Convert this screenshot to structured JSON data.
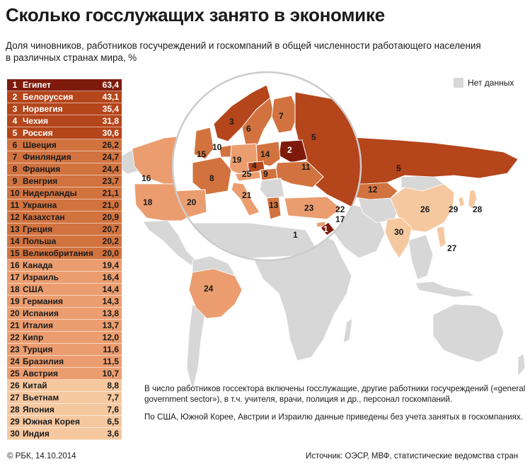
{
  "header": {
    "title": "Сколько госслужащих занято в экономике",
    "subtitle": "Доля чиновников, работников госучреждений и госкомпаний в общей численности работающего населения в различных странах мира, %"
  },
  "legend": {
    "no_data_label": "Нет данных",
    "no_data_color": "#d7d7d7"
  },
  "colors": {
    "tier1": "#7e1a0c",
    "tier2": "#b5451b",
    "tier3": "#d2733f",
    "tier4": "#eb9d6f",
    "tier5": "#f6c8a0",
    "nodata": "#d7d7d7"
  },
  "chart_data": {
    "type": "table",
    "columns": [
      "rank",
      "country",
      "value"
    ],
    "rows": [
      {
        "rank": "1",
        "country": "Египет",
        "value": "63,4",
        "tier": "tier1"
      },
      {
        "rank": "2",
        "country": "Белоруссия",
        "value": "43,1",
        "tier": "tier2"
      },
      {
        "rank": "3",
        "country": "Норвегия",
        "value": "35,4",
        "tier": "tier2"
      },
      {
        "rank": "4",
        "country": "Чехия",
        "value": "31,8",
        "tier": "tier2"
      },
      {
        "rank": "5",
        "country": "Россия",
        "value": "30,6",
        "tier": "tier2"
      },
      {
        "rank": "6",
        "country": "Швеция",
        "value": "26,2",
        "tier": "tier3"
      },
      {
        "rank": "7",
        "country": "Финляндия",
        "value": "24,7",
        "tier": "tier3"
      },
      {
        "rank": "8",
        "country": "Франция",
        "value": "24,4",
        "tier": "tier3"
      },
      {
        "rank": "9",
        "country": "Венгрия",
        "value": "23,7",
        "tier": "tier3"
      },
      {
        "rank": "10",
        "country": "Нидерланды",
        "value": "21,1",
        "tier": "tier3"
      },
      {
        "rank": "11",
        "country": "Украина",
        "value": "21,0",
        "tier": "tier3"
      },
      {
        "rank": "12",
        "country": "Казахстан",
        "value": "20,9",
        "tier": "tier3"
      },
      {
        "rank": "13",
        "country": "Греция",
        "value": "20,7",
        "tier": "tier3"
      },
      {
        "rank": "14",
        "country": "Польша",
        "value": "20,2",
        "tier": "tier3"
      },
      {
        "rank": "15",
        "country": "Великобритания",
        "value": "20,0",
        "tier": "tier3"
      },
      {
        "rank": "16",
        "country": "Канада",
        "value": "19,4",
        "tier": "tier4"
      },
      {
        "rank": "17",
        "country": "Израиль",
        "value": "16,4",
        "tier": "tier4"
      },
      {
        "rank": "18",
        "country": "США",
        "value": "14,4",
        "tier": "tier4"
      },
      {
        "rank": "19",
        "country": "Германия",
        "value": "14,3",
        "tier": "tier4"
      },
      {
        "rank": "20",
        "country": "Испания",
        "value": "13,8",
        "tier": "tier4"
      },
      {
        "rank": "21",
        "country": "Италия",
        "value": "13,7",
        "tier": "tier4"
      },
      {
        "rank": "22",
        "country": "Кипр",
        "value": "12,0",
        "tier": "tier4"
      },
      {
        "rank": "23",
        "country": "Турция",
        "value": "11,6",
        "tier": "tier4"
      },
      {
        "rank": "24",
        "country": "Бразилия",
        "value": "11,5",
        "tier": "tier4"
      },
      {
        "rank": "25",
        "country": "Австрия",
        "value": "10,7",
        "tier": "tier4"
      },
      {
        "rank": "26",
        "country": "Китай",
        "value": "8,8",
        "tier": "tier5"
      },
      {
        "rank": "27",
        "country": "Вьетнам",
        "value": "7,7",
        "tier": "tier5"
      },
      {
        "rank": "28",
        "country": "Япония",
        "value": "7,6",
        "tier": "tier5"
      },
      {
        "rank": "29",
        "country": "Южная Корея",
        "value": "6,5",
        "tier": "tier5"
      },
      {
        "rank": "30",
        "country": "Индия",
        "value": "3,6",
        "tier": "tier5"
      }
    ]
  },
  "notes": {
    "note1": "В число работников госсектора включены госслужащие, другие работники госучреждений («general government sector»), в т.ч. учителя, врачи, полиция и др., персонал госкомпаний.",
    "note2": "По США, Южной Корее, Австрии и Израилю данные приведены без учета занятых в госкомпаниях."
  },
  "footer": {
    "copyright": "© РБК, 14.10.2014",
    "source": "Источник: ОЭСР, МВФ, статистические ведомства стран"
  },
  "map_labels": {
    "l1": "1",
    "l1b": "1",
    "l2": "2",
    "l3": "3",
    "l4": "4",
    "l5a": "5",
    "l5b": "5",
    "l6": "6",
    "l7": "7",
    "l8": "8",
    "l9": "9",
    "l10": "10",
    "l11": "11",
    "l12": "12",
    "l13": "13",
    "l14": "14",
    "l15": "15",
    "l16": "16",
    "l17": "17",
    "l18": "18",
    "l19": "19",
    "l20": "20",
    "l21": "21",
    "l22": "22",
    "l23": "23",
    "l24": "24",
    "l25": "25",
    "l26": "26",
    "l27": "27",
    "l28": "28",
    "l29": "29",
    "l30": "30"
  }
}
